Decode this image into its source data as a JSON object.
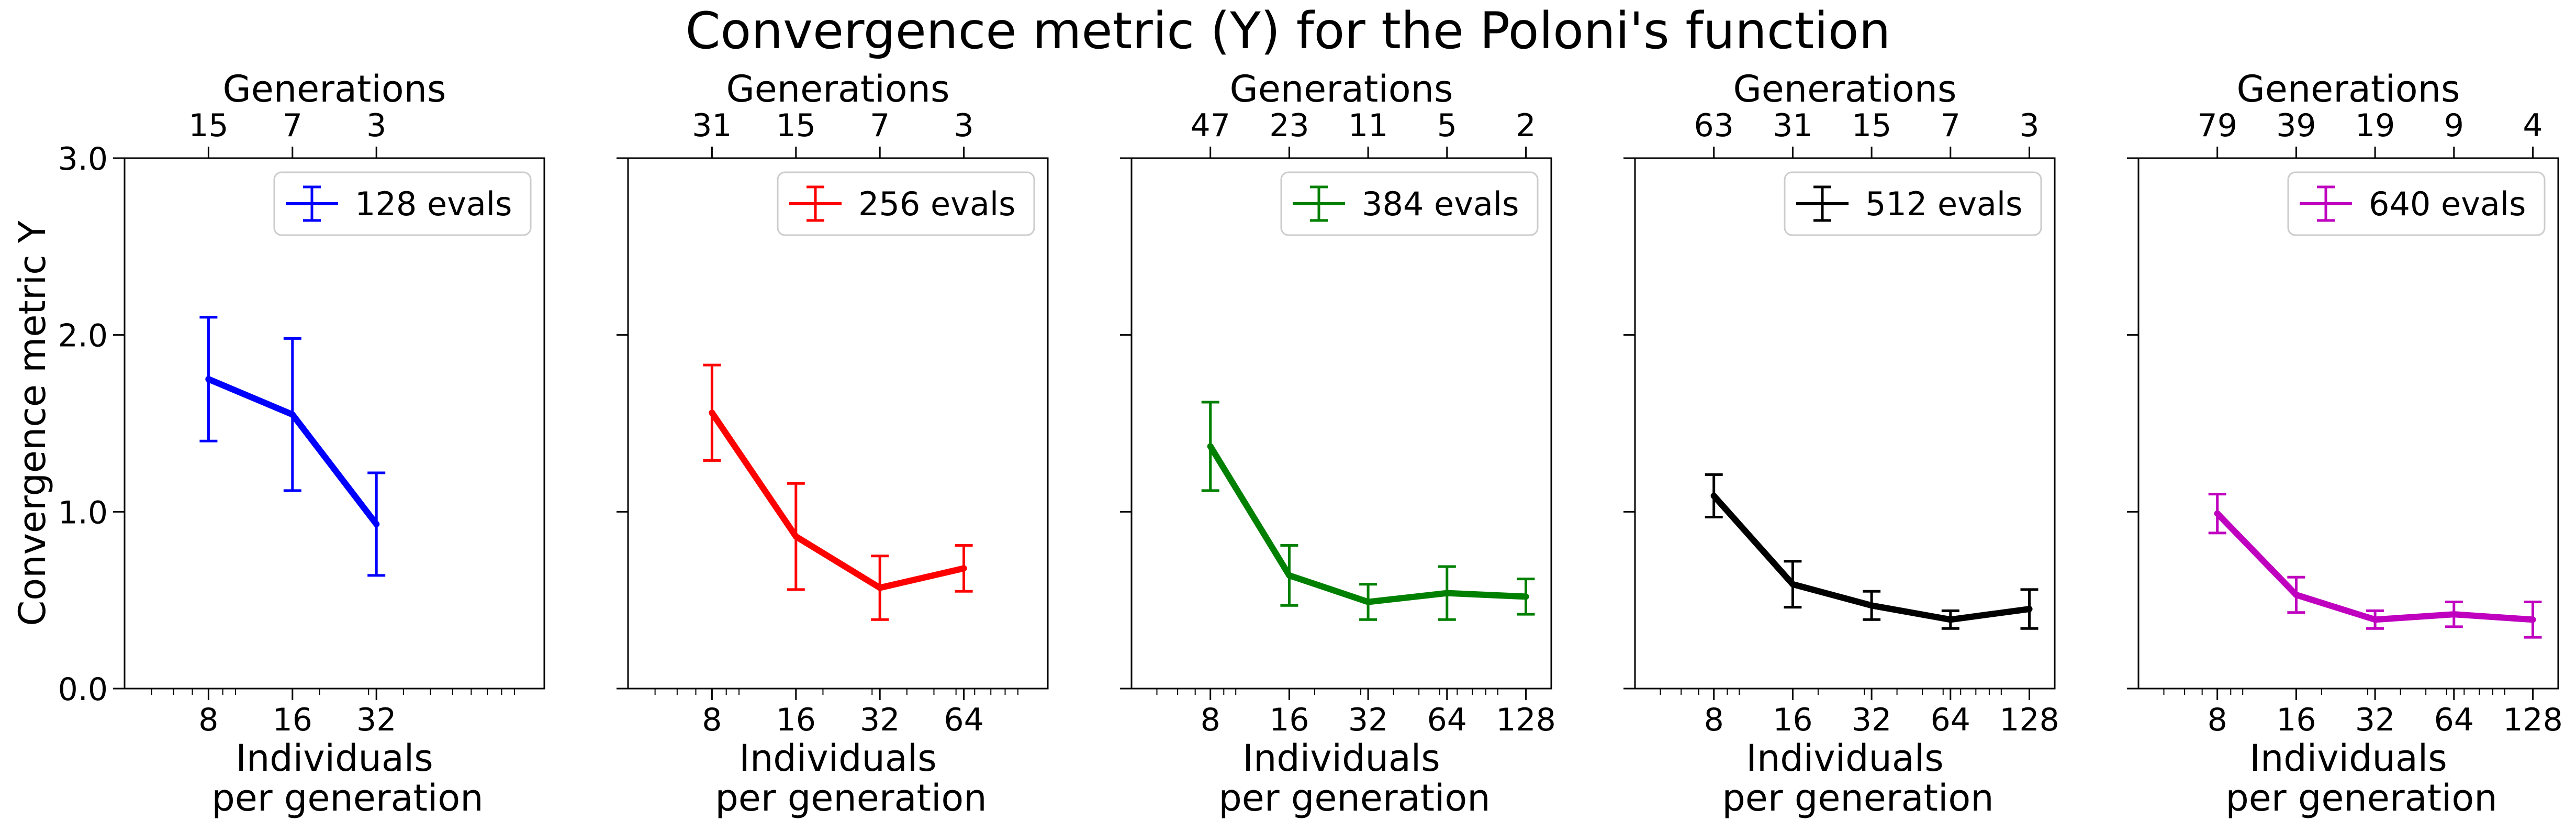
{
  "figure": {
    "title": "Convergence metric (Y) for the Poloni's function"
  },
  "chart_data": [
    {
      "type": "line",
      "color": "#0000ff",
      "legend": "128 evals",
      "x": [
        8,
        16,
        32
      ],
      "y": [
        1.75,
        1.55,
        0.93
      ],
      "yerr": [
        0.35,
        0.43,
        0.29
      ],
      "top_ticks": [
        "15",
        "7",
        "3"
      ],
      "xticks": [
        "8",
        "16",
        "32"
      ],
      "xlim": [
        4,
        128
      ],
      "ylim": [
        0,
        3
      ],
      "xlabel": "Individuals\nper generation",
      "top_label": "Generations",
      "ylabel": "Convergence metric Y",
      "ytick_labels": [
        "0.0",
        "1.0",
        "2.0",
        "3.0"
      ],
      "x_scale": "log2",
      "legend_position": "top-right"
    },
    {
      "type": "line",
      "color": "#ff0000",
      "legend": "256 evals",
      "x": [
        8,
        16,
        32,
        64
      ],
      "y": [
        1.56,
        0.86,
        0.57,
        0.68
      ],
      "yerr": [
        0.27,
        0.3,
        0.18,
        0.13
      ],
      "top_ticks": [
        "31",
        "15",
        "7",
        "3"
      ],
      "xticks": [
        "8",
        "16",
        "32",
        "64"
      ],
      "xlim": [
        4,
        128
      ],
      "ylim": [
        0,
        3
      ],
      "xlabel": "Individuals\nper generation",
      "top_label": "Generations",
      "x_scale": "log2",
      "legend_position": "top-right"
    },
    {
      "type": "line",
      "color": "#008000",
      "legend": "384 evals",
      "x": [
        8,
        16,
        32,
        64,
        128
      ],
      "y": [
        1.37,
        0.64,
        0.49,
        0.54,
        0.52
      ],
      "yerr": [
        0.25,
        0.17,
        0.1,
        0.15,
        0.1
      ],
      "top_ticks": [
        "47",
        "23",
        "11",
        "5",
        "2"
      ],
      "xticks": [
        "8",
        "16",
        "32",
        "64",
        "128"
      ],
      "xlim": [
        4,
        160
      ],
      "ylim": [
        0,
        3
      ],
      "xlabel": "Individuals\nper generation",
      "top_label": "Generations",
      "x_scale": "log2",
      "legend_position": "top-right"
    },
    {
      "type": "line",
      "color": "#000000",
      "legend": "512 evals",
      "x": [
        8,
        16,
        32,
        64,
        128
      ],
      "y": [
        1.09,
        0.59,
        0.47,
        0.39,
        0.45
      ],
      "yerr": [
        0.12,
        0.13,
        0.08,
        0.05,
        0.11
      ],
      "top_ticks": [
        "63",
        "31",
        "15",
        "7",
        "3"
      ],
      "xticks": [
        "8",
        "16",
        "32",
        "64",
        "128"
      ],
      "xlim": [
        4,
        160
      ],
      "ylim": [
        0,
        3
      ],
      "xlabel": "Individuals\nper generation",
      "top_label": "Generations",
      "x_scale": "log2",
      "legend_position": "top-right"
    },
    {
      "type": "line",
      "color": "#bf00bf",
      "legend": "640 evals",
      "x": [
        8,
        16,
        32,
        64,
        128
      ],
      "y": [
        0.99,
        0.53,
        0.39,
        0.42,
        0.39
      ],
      "yerr": [
        0.11,
        0.1,
        0.05,
        0.07,
        0.1
      ],
      "top_ticks": [
        "79",
        "39",
        "19",
        "9",
        "4"
      ],
      "xticks": [
        "8",
        "16",
        "32",
        "64",
        "128"
      ],
      "xlim": [
        4,
        160
      ],
      "ylim": [
        0,
        3
      ],
      "xlabel": "Individuals\nper generation",
      "top_label": "Generations",
      "x_scale": "log2",
      "legend_position": "top-right"
    }
  ]
}
